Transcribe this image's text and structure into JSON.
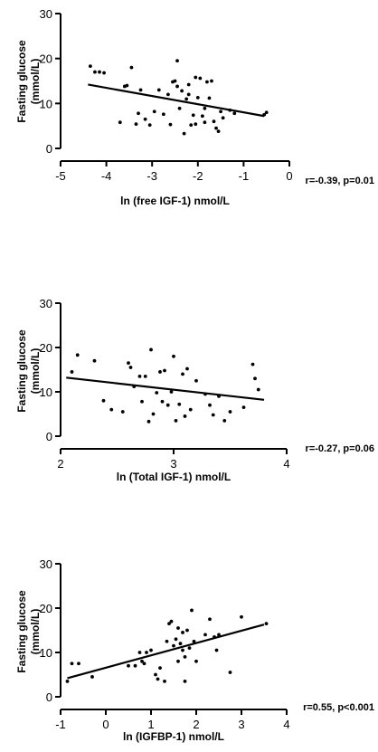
{
  "chart_data": [
    {
      "type": "scatter",
      "title": "",
      "xlabel": "ln (free IGF-1) nmol/L",
      "ylabel": "Fasting glucose\n(mmol/L)",
      "xlim": [
        -5,
        0
      ],
      "ylim": [
        0,
        30
      ],
      "xticks": [
        -5,
        -4,
        -3,
        -2,
        -1,
        0
      ],
      "yticks": [
        0,
        10,
        20,
        30
      ],
      "annotation": "r=-0.39, p=0.01",
      "regression_line": {
        "x": [
          -4.4,
          -0.55
        ],
        "y": [
          14.2,
          7.2
        ]
      },
      "points": {
        "x": [
          -4.35,
          -4.25,
          -4.15,
          -4.05,
          -3.7,
          -3.6,
          -3.55,
          -3.45,
          -3.35,
          -3.3,
          -3.25,
          -3.15,
          -3.05,
          -2.95,
          -2.85,
          -2.75,
          -2.65,
          -2.6,
          -2.55,
          -2.5,
          -2.45,
          -2.45,
          -2.4,
          -2.35,
          -2.3,
          -2.25,
          -2.2,
          -2.2,
          -2.15,
          -2.1,
          -2.05,
          -2.05,
          -2.0,
          -1.95,
          -1.9,
          -1.85,
          -1.85,
          -1.8,
          -1.75,
          -1.7,
          -1.65,
          -1.6,
          -1.55,
          -1.5,
          -1.45,
          -1.3,
          -1.2,
          -0.55,
          -0.5
        ],
        "y": [
          18.3,
          17.0,
          17.0,
          16.8,
          5.8,
          13.8,
          14.0,
          18.0,
          5.4,
          7.8,
          13.0,
          6.5,
          5.2,
          8.2,
          13.0,
          7.6,
          12.0,
          5.3,
          14.8,
          15.0,
          19.5,
          13.8,
          8.9,
          12.8,
          3.3,
          11.0,
          12.0,
          14.2,
          5.2,
          7.4,
          15.8,
          5.4,
          11.3,
          15.6,
          7.2,
          8.9,
          5.8,
          14.8,
          11.2,
          15.0,
          6.0,
          4.5,
          3.8,
          8.2,
          6.8,
          8.5,
          7.8,
          7.5,
          8.0
        ]
      }
    },
    {
      "type": "scatter",
      "title": "",
      "xlabel": "ln (Total IGF-1) nmol/L",
      "ylabel": "Fasting glucose\n(mmol/L)",
      "xlim": [
        2,
        4
      ],
      "ylim": [
        0,
        30
      ],
      "xticks": [
        2,
        3,
        4
      ],
      "yticks": [
        0,
        10,
        20,
        30
      ],
      "annotation": "r=-0.27, p=0.06",
      "regression_line": {
        "x": [
          2.05,
          3.8
        ],
        "y": [
          13.2,
          8.2
        ]
      },
      "points": {
        "x": [
          2.1,
          2.15,
          2.3,
          2.38,
          2.45,
          2.55,
          2.6,
          2.62,
          2.65,
          2.7,
          2.72,
          2.75,
          2.78,
          2.8,
          2.82,
          2.85,
          2.88,
          2.9,
          2.92,
          2.95,
          2.98,
          3.0,
          3.02,
          3.05,
          3.08,
          3.1,
          3.12,
          3.15,
          3.2,
          3.28,
          3.32,
          3.35,
          3.4,
          3.45,
          3.5,
          3.62,
          3.7,
          3.72,
          3.75
        ],
        "y": [
          14.5,
          18.3,
          17.0,
          8.0,
          6.0,
          5.5,
          16.5,
          15.5,
          11.2,
          13.5,
          7.8,
          13.5,
          3.3,
          19.5,
          5.0,
          9.8,
          14.5,
          7.8,
          14.8,
          7.0,
          10.0,
          18.0,
          3.5,
          7.2,
          14.0,
          4.5,
          15.2,
          6.0,
          12.5,
          9.5,
          7.0,
          4.8,
          9.0,
          3.5,
          5.5,
          6.5,
          16.2,
          13.0,
          10.5
        ]
      }
    },
    {
      "type": "scatter",
      "title": "",
      "xlabel": "ln (IGFBP-1) nmol/L",
      "ylabel": "Fasting glucose\n(mmol/L)",
      "xlim": [
        -1,
        4
      ],
      "ylim": [
        0,
        30
      ],
      "xticks": [
        -1,
        0,
        1,
        2,
        3,
        4
      ],
      "yticks": [
        0,
        10,
        20,
        30
      ],
      "annotation": "r=0.55, p<0.001",
      "regression_line": {
        "x": [
          -0.85,
          3.5
        ],
        "y": [
          4.2,
          16.3
        ]
      },
      "points": {
        "x": [
          -0.85,
          -0.75,
          -0.6,
          -0.3,
          0.5,
          0.65,
          0.75,
          0.8,
          0.85,
          0.9,
          1.0,
          1.1,
          1.15,
          1.2,
          1.3,
          1.35,
          1.4,
          1.45,
          1.5,
          1.55,
          1.6,
          1.6,
          1.65,
          1.7,
          1.7,
          1.75,
          1.75,
          1.8,
          1.85,
          1.9,
          1.95,
          2.0,
          2.2,
          2.3,
          2.4,
          2.45,
          2.5,
          2.75,
          3.0,
          3.55
        ],
        "y": [
          3.5,
          7.5,
          7.5,
          4.5,
          7.0,
          7.0,
          10.0,
          8.0,
          7.5,
          10.0,
          10.5,
          5.0,
          4.0,
          6.5,
          3.5,
          12.5,
          16.5,
          17.0,
          11.5,
          13.0,
          15.5,
          8.0,
          12.0,
          10.5,
          14.5,
          9.0,
          3.5,
          15.0,
          11.0,
          19.5,
          12.5,
          8.0,
          14.0,
          17.5,
          13.5,
          10.5,
          14.0,
          5.5,
          18.0,
          16.5
        ]
      }
    }
  ]
}
